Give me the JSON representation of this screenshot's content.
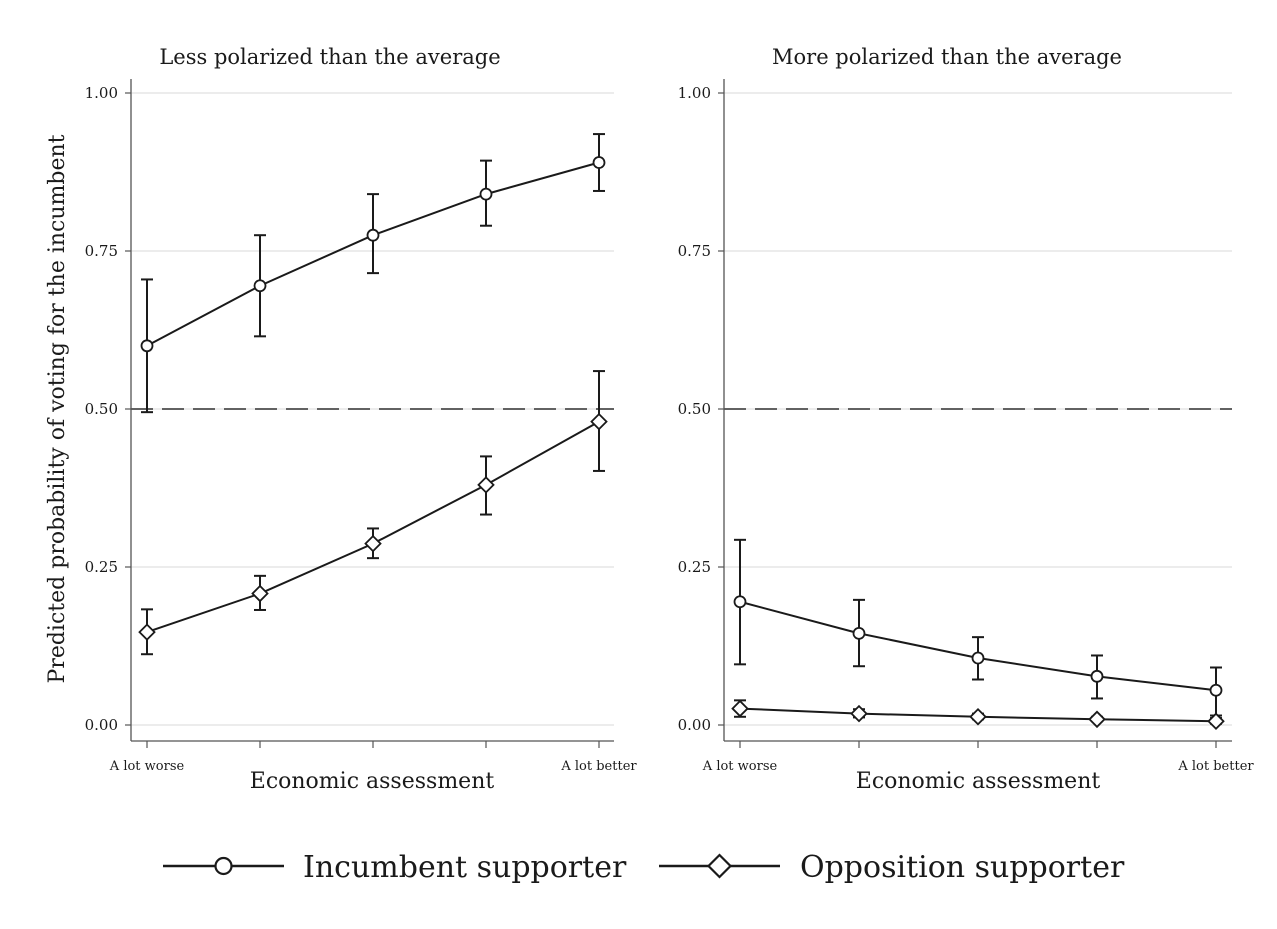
{
  "ylabel": "Predicted probability of voting for the incumbent",
  "legend": [
    {
      "label": "Incumbent supporter",
      "marker": "circle"
    },
    {
      "label": "Opposition supporter",
      "marker": "diamond"
    }
  ],
  "colors": {
    "series": "#1a1a1a",
    "grid": "#e6e6e6",
    "reference_line": "#333333",
    "axis": "#555555"
  },
  "chart_data": [
    {
      "type": "line",
      "title": "Less polarized than the average",
      "xlabel": "Economic assessment",
      "x": [
        1,
        2,
        3,
        4,
        5
      ],
      "x_tick_labels": [
        {
          "x": 1,
          "label": "A lot worse"
        },
        {
          "x": 5,
          "label": "A lot better"
        }
      ],
      "ylim": [
        -0.025,
        1.025
      ],
      "yticks": [
        0.0,
        0.25,
        0.5,
        0.75,
        1.0
      ],
      "ytick_labels": [
        "0.00",
        "0.25",
        "0.50",
        "0.75",
        "1.00"
      ],
      "reference_line": 0.5,
      "grid": true,
      "series": [
        {
          "name": "Incumbent supporter",
          "marker": "circle",
          "values": [
            0.6,
            0.695,
            0.775,
            0.84,
            0.89
          ],
          "ci_low": [
            0.495,
            0.615,
            0.715,
            0.79,
            0.845
          ],
          "ci_high": [
            0.705,
            0.775,
            0.84,
            0.893,
            0.935
          ]
        },
        {
          "name": "Opposition supporter",
          "marker": "diamond",
          "values": [
            0.147,
            0.208,
            0.287,
            0.38,
            0.48
          ],
          "ci_low": [
            0.112,
            0.182,
            0.264,
            0.333,
            0.402
          ],
          "ci_high": [
            0.183,
            0.236,
            0.311,
            0.425,
            0.56
          ]
        }
      ]
    },
    {
      "type": "line",
      "title": "More polarized than the average",
      "xlabel": "Economic assessment",
      "x": [
        1,
        2,
        3,
        4,
        5
      ],
      "x_tick_labels": [
        {
          "x": 1,
          "label": "A lot worse"
        },
        {
          "x": 5,
          "label": "A lot better"
        }
      ],
      "ylim": [
        -0.025,
        1.025
      ],
      "yticks": [
        0.0,
        0.25,
        0.5,
        0.75,
        1.0
      ],
      "ytick_labels": [
        "0.00",
        "0.25",
        "0.50",
        "0.75",
        "1.00"
      ],
      "reference_line": 0.5,
      "grid": true,
      "series": [
        {
          "name": "Incumbent supporter",
          "marker": "circle",
          "values": [
            0.195,
            0.145,
            0.106,
            0.077,
            0.055
          ],
          "ci_low": [
            0.096,
            0.093,
            0.072,
            0.042,
            0.015
          ],
          "ci_high": [
            0.293,
            0.198,
            0.139,
            0.11,
            0.091
          ]
        },
        {
          "name": "Opposition supporter",
          "marker": "diamond",
          "values": [
            0.026,
            0.018,
            0.013,
            0.009,
            0.006
          ],
          "ci_low": [
            0.013,
            0.012,
            0.009,
            0.006,
            0.002
          ],
          "ci_high": [
            0.039,
            0.025,
            0.018,
            0.013,
            0.011
          ]
        }
      ]
    }
  ]
}
